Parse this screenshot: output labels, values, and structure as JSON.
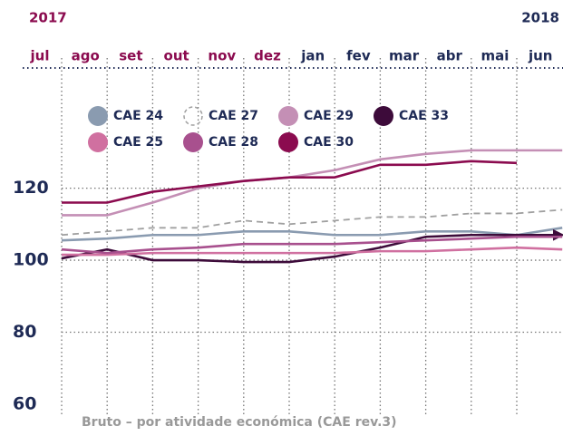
{
  "chart_data": {
    "type": "line",
    "years": [
      "2017",
      "2018"
    ],
    "categories": [
      "jul",
      "ago",
      "set",
      "out",
      "nov",
      "dez",
      "jan",
      "fev",
      "mar",
      "abr",
      "mai",
      "jun"
    ],
    "series": [
      {
        "name": "CAE 24",
        "color": "#8a9bb0",
        "values": [
          105.5,
          106,
          107,
          107,
          108,
          108,
          107,
          107,
          108,
          108,
          107,
          109
        ]
      },
      {
        "name": "CAE 27",
        "color": "#a0a0a0",
        "dashed": true,
        "values": [
          107,
          108,
          109,
          109,
          111,
          110,
          111,
          112,
          112,
          113,
          113,
          114
        ]
      },
      {
        "name": "CAE 29",
        "color": "#c48fb5",
        "values": [
          112.5,
          112.5,
          116,
          120,
          122,
          123,
          125,
          128,
          129.5,
          130.5,
          130.5,
          130.5
        ]
      },
      {
        "name": "CAE 33",
        "color": "#3d0b3a",
        "values": [
          100.5,
          103,
          100,
          100,
          99.5,
          99.5,
          101,
          103.5,
          106.5,
          107,
          107,
          107
        ]
      },
      {
        "name": "CAE 25",
        "color": "#d070a0",
        "values": [
          101.5,
          101.5,
          102,
          102,
          102,
          102,
          102,
          102.5,
          102.5,
          103,
          103.5,
          103
        ]
      },
      {
        "name": "CAE 28",
        "color": "#a8508e",
        "values": [
          103,
          102,
          103,
          103.5,
          104.5,
          104.5,
          104.5,
          105,
          105.5,
          106,
          106.5,
          106.5
        ]
      },
      {
        "name": "CAE 30",
        "color": "#8b0b4f",
        "values": [
          116,
          116,
          119,
          120.5,
          122,
          123,
          123,
          126.5,
          126.5,
          127.5,
          127,
          null
        ]
      }
    ],
    "ylim": [
      60,
      135
    ],
    "yticks": [
      60,
      80,
      100,
      120
    ],
    "grid": true,
    "note": "Bruto – por atividade económica (CAE rev.3)"
  }
}
